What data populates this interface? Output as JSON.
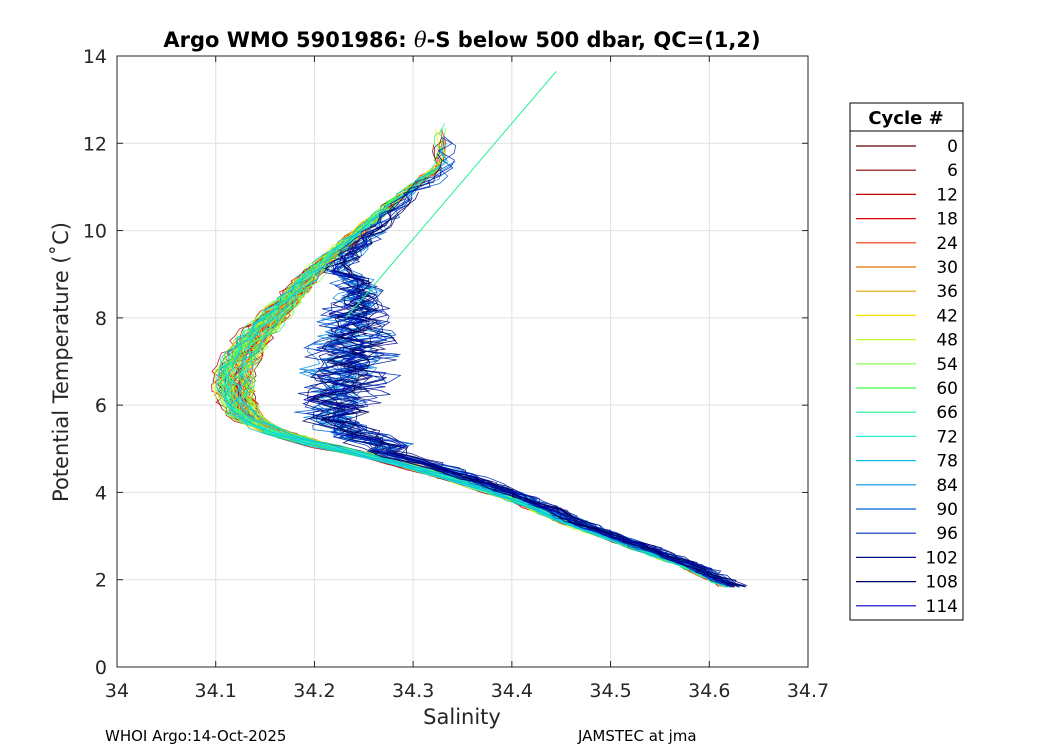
{
  "chart_data": {
    "type": "line",
    "title_prefix": "Argo WMO 5901986: ",
    "title_theta": "θ",
    "title_suffix": "-S below 500 dbar,  QC=(1,2)",
    "xlabel": "Salinity",
    "ylabel": "Potential Temperature (˚C)",
    "xlim": [
      34.0,
      34.7
    ],
    "ylim": [
      0,
      14
    ],
    "xticks": [
      "34",
      "34.1",
      "34.2",
      "34.3",
      "34.4",
      "34.5",
      "34.6",
      "34.7"
    ],
    "xtick_values": [
      34.0,
      34.1,
      34.2,
      34.3,
      34.4,
      34.5,
      34.6,
      34.7
    ],
    "yticks": [
      "0",
      "2",
      "4",
      "6",
      "8",
      "10",
      "12",
      "14"
    ],
    "ytick_values": [
      0,
      2,
      4,
      6,
      8,
      10,
      12,
      14
    ],
    "grid": true,
    "legend": {
      "title": "Cycle #",
      "position": "right",
      "entries": [
        {
          "label": "0",
          "color": "#600000"
        },
        {
          "label": "6",
          "color": "#900000"
        },
        {
          "label": "12",
          "color": "#c00000"
        },
        {
          "label": "18",
          "color": "#e00000"
        },
        {
          "label": "24",
          "color": "#ff3000"
        },
        {
          "label": "30",
          "color": "#e07000"
        },
        {
          "label": "36",
          "color": "#e0a000"
        },
        {
          "label": "42",
          "color": "#ffe000"
        },
        {
          "label": "48",
          "color": "#c0ff30"
        },
        {
          "label": "54",
          "color": "#80ff40"
        },
        {
          "label": "60",
          "color": "#40ff40"
        },
        {
          "label": "66",
          "color": "#20f090"
        },
        {
          "label": "72",
          "color": "#20f0d0"
        },
        {
          "label": "78",
          "color": "#10c0e0"
        },
        {
          "label": "84",
          "color": "#0090e0"
        },
        {
          "label": "90",
          "color": "#0060d0"
        },
        {
          "label": "96",
          "color": "#0030c0"
        },
        {
          "label": "102",
          "color": "#001090"
        },
        {
          "label": "108",
          "color": "#000060"
        },
        {
          "label": "114",
          "color": "#0000cc"
        }
      ]
    },
    "mean_profile": {
      "salinity": [
        34.62,
        34.58,
        34.52,
        34.46,
        34.41,
        34.36,
        34.31,
        34.26,
        34.21,
        34.17,
        34.14,
        34.13,
        34.13,
        34.15,
        34.18,
        34.21,
        34.25,
        34.29,
        34.33
      ],
      "temperature": [
        1.85,
        2.3,
        2.8,
        3.3,
        3.8,
        4.2,
        4.55,
        4.85,
        5.1,
        5.35,
        5.7,
        6.2,
        6.8,
        7.6,
        8.4,
        9.2,
        10.0,
        10.8,
        11.5
      ]
    }
  },
  "footer": {
    "left": "WHOI Argo:14-Oct-2025",
    "right": "JAMSTEC at jma"
  }
}
